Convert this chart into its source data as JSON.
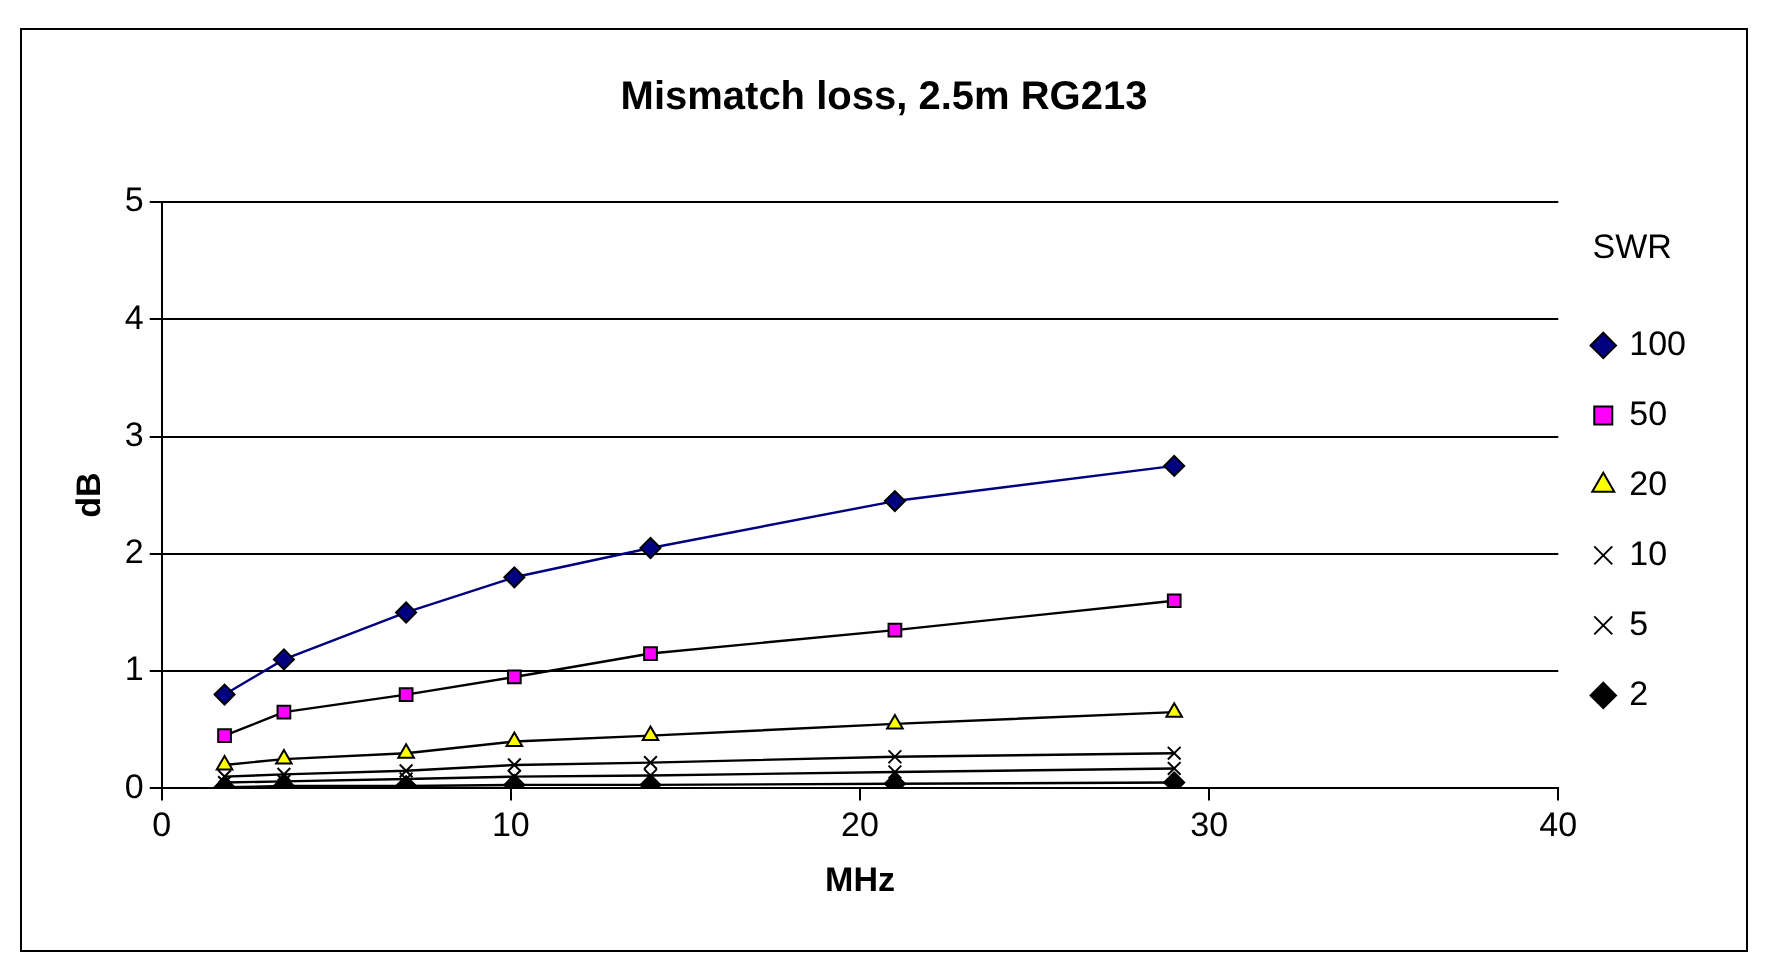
{
  "chart_data": {
    "type": "line",
    "title": "Mismatch loss, 2.5m RG213",
    "xlabel": "MHz",
    "ylabel": "dB",
    "legend_title": "SWR",
    "legend": "right",
    "grid": "y",
    "x": [
      1.8,
      3.5,
      7,
      10.1,
      14,
      21,
      29
    ],
    "xlim": [
      0,
      40
    ],
    "xticks": [
      0,
      10,
      20,
      30,
      40
    ],
    "ylim": [
      0,
      5
    ],
    "yticks": [
      0,
      1,
      2,
      3,
      4,
      5
    ],
    "series": [
      {
        "name": "100",
        "color": "#000080",
        "marker": "diamond",
        "values": [
          0.8,
          1.1,
          1.5,
          1.8,
          2.05,
          2.45,
          2.75
        ]
      },
      {
        "name": "50",
        "color": "#ff00ff",
        "marker": "square",
        "values": [
          0.45,
          0.65,
          0.8,
          0.95,
          1.15,
          1.35,
          1.6
        ]
      },
      {
        "name": "20",
        "color": "#ffff00",
        "marker": "triangle",
        "values": [
          0.2,
          0.25,
          0.3,
          0.4,
          0.45,
          0.55,
          0.65
        ]
      },
      {
        "name": "10",
        "color": "#000000",
        "marker": "cross",
        "values": [
          0.1,
          0.12,
          0.15,
          0.2,
          0.22,
          0.27,
          0.3
        ]
      },
      {
        "name": "5",
        "color": "#000000",
        "marker": "cross",
        "values": [
          0.05,
          0.06,
          0.08,
          0.1,
          0.11,
          0.14,
          0.17
        ]
      },
      {
        "name": "2",
        "color": "#000000",
        "marker": "diamond",
        "values": [
          0.01,
          0.02,
          0.02,
          0.03,
          0.03,
          0.04,
          0.05
        ]
      }
    ]
  }
}
